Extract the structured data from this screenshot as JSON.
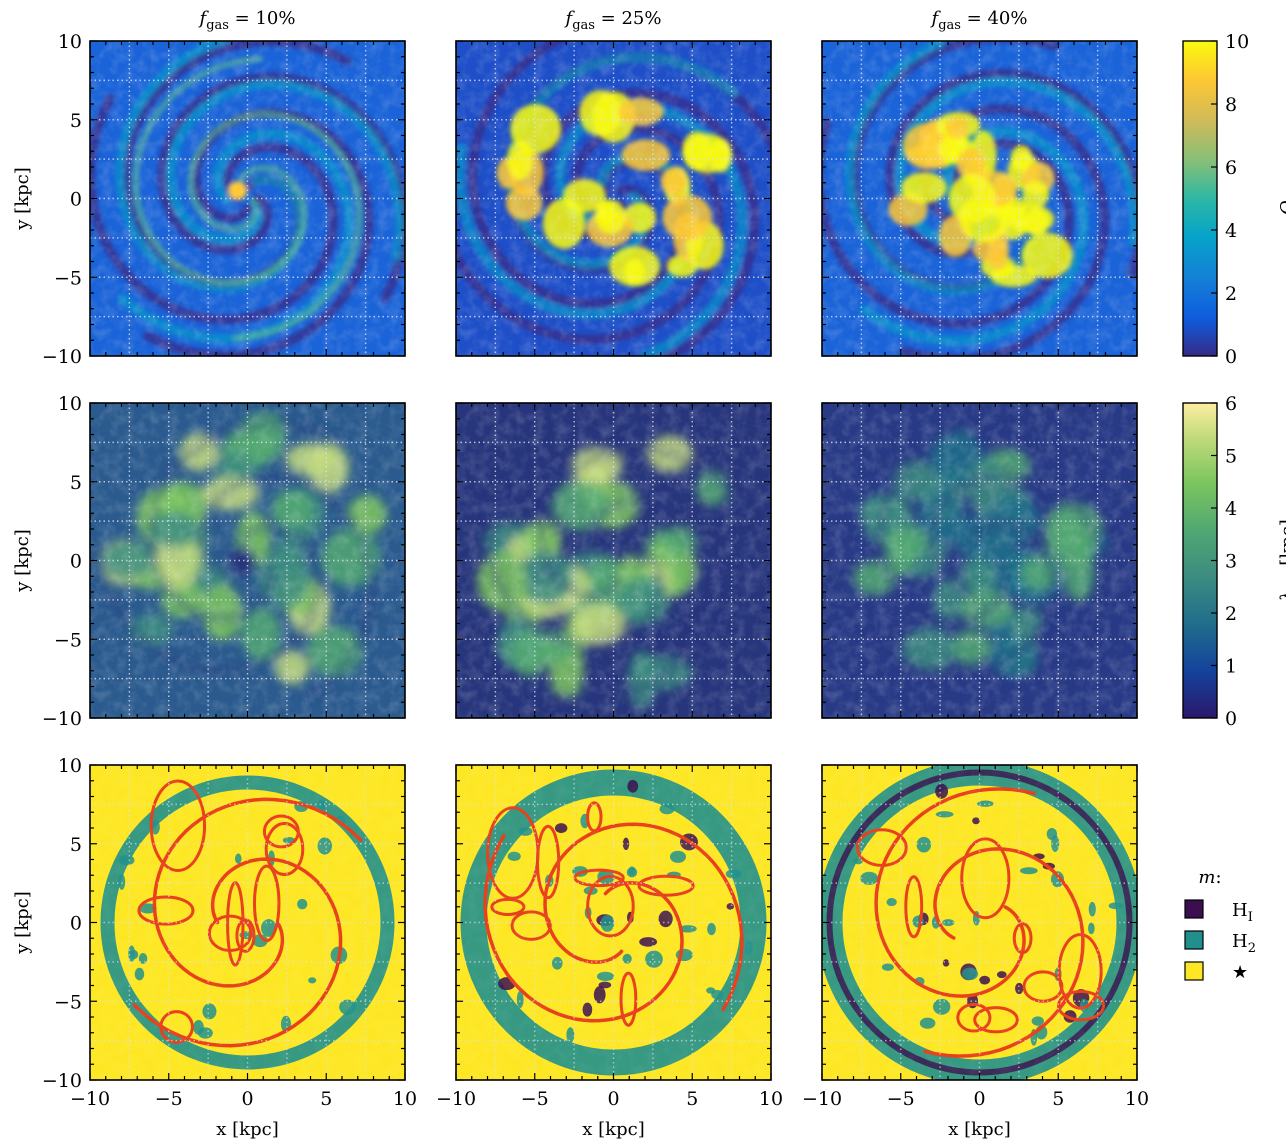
{
  "chart_data": {
    "type": "heatmap",
    "columns": [
      {
        "name": "f",
        "sub": "gas",
        "rest": " = 10%"
      },
      {
        "name": "f",
        "sub": "gas",
        "rest": " = 25%"
      },
      {
        "name": "f",
        "sub": "gas",
        "rest": " = 40%"
      }
    ],
    "xlabel": "x [kpc]",
    "ylabel": "y [kpc]",
    "xlim": [
      -10,
      10
    ],
    "ylim": [
      -10,
      10
    ],
    "x_ticks": [
      "−10",
      "−5",
      "0",
      "5",
      "10"
    ],
    "y_ticks": [
      "10",
      "5",
      "0",
      "−5",
      "−10"
    ],
    "grid": "dotted, every 2.5 kpc",
    "rows": [
      {
        "quantity": "Q_RF",
        "colorbar_label": {
          "main": "Q",
          "sub": "RF",
          "rest": ""
        },
        "colormap": "parula",
        "clim": [
          0,
          10
        ],
        "colorbar_ticks": [
          "0",
          "2",
          "4",
          "6",
          "8",
          "10"
        ]
      },
      {
        "quantity": "lambda_RF",
        "colorbar_label": {
          "main": "λ",
          "sub": "RF",
          "rest": " [kpc]"
        },
        "colormap": "haline",
        "clim": [
          0,
          6
        ],
        "colorbar_ticks": [
          "0",
          "1",
          "2",
          "3",
          "4",
          "5",
          "6"
        ]
      },
      {
        "quantity": "m",
        "legend_title": "m:",
        "legend": [
          {
            "main": "H",
            "sub": "I",
            "color": "#3b0f4f"
          },
          {
            "main": "H",
            "sub": "2",
            "color": "#21908d"
          },
          {
            "main": "★",
            "sub": "",
            "color": "#fde725"
          }
        ],
        "contour_color": "#e8401c"
      }
    ]
  }
}
